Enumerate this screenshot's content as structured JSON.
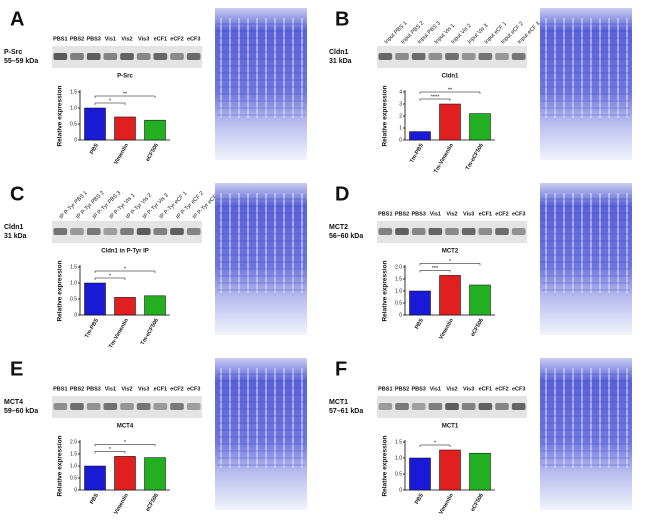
{
  "panels": [
    {
      "letter": "A",
      "protein": "P-Src",
      "kda": "55–59 kDa",
      "lanes": [
        "PBS1",
        "PBS2",
        "PBS3",
        "Vis1",
        "Vis2",
        "Vis3",
        "eCF1",
        "eCF2",
        "eCF3"
      ]
    },
    {
      "letter": "B",
      "protein": "Cldn1",
      "kda": "31 kDa",
      "lanes": [
        "Input PBS 1",
        "Input PBS 2",
        "Input PBS 3",
        "Input Vis 1",
        "Input Vis 2",
        "Input Vis 3",
        "Input eCF 1",
        "Input eCF 2",
        "Input eCF 3"
      ]
    },
    {
      "letter": "C",
      "protein": "Cldn1",
      "kda": "31 kDa",
      "lanes": [
        "IP P-Tyr PBS 1",
        "IP P-Tyr PBS 2",
        "IP P-Tyr PBS 3",
        "IP P-Tyr Vis 1",
        "IP P-Tyr Vis 2",
        "IP P-Tyr Vis 3",
        "IP P-Tyr eCF 1",
        "IP P-Tyr eCF 2",
        "IP P-Tyr eCF 3"
      ]
    },
    {
      "letter": "D",
      "protein": "MCT2",
      "kda": "56–60 kDa",
      "lanes": [
        "PBS1",
        "PBS2",
        "PBS3",
        "Vis1",
        "Vis2",
        "Vis3",
        "eCF1",
        "eCF2",
        "eCF3"
      ]
    },
    {
      "letter": "E",
      "protein": "MCT4",
      "kda": "59–60 kDa",
      "lanes": [
        "PBS1",
        "PBS2",
        "PBS3",
        "Vis1",
        "Vis2",
        "Vis3",
        "eCF1",
        "eCF2",
        "eCF3"
      ]
    },
    {
      "letter": "F",
      "protein": "MCT1",
      "kda": "57–61 kDa",
      "lanes": [
        "PBS1",
        "PBS2",
        "PBS3",
        "Vis1",
        "Vis2",
        "Vis3",
        "eCF1",
        "eCF2",
        "eCF3"
      ]
    }
  ],
  "chart_data": [
    {
      "type": "bar",
      "title": "P-Src",
      "ylabel": "Relative expression",
      "categories": [
        "PBS",
        "Vimentin",
        "eCF506"
      ],
      "values": [
        1.0,
        0.72,
        0.62
      ],
      "color": [
        "#1a1ad6",
        "#e02020",
        "#22b022"
      ],
      "ylim": [
        0,
        1.5
      ],
      "yticks": [
        0,
        0.5,
        {
          "value": 1,
          "label": "1.0"
        },
        1.5
      ],
      "annotations": [
        "*",
        "**"
      ]
    },
    {
      "type": "bar",
      "title": "Cldn1",
      "ylabel": "Relative expression",
      "categories": [
        "Tm-PBS",
        "Tm-Vimentin",
        "Tm-eCF506"
      ],
      "values": [
        0.7,
        3.0,
        2.2
      ],
      "color": [
        "#1a1ad6",
        "#e02020",
        "#22b022"
      ],
      "ylim": [
        0,
        4
      ],
      "yticks": [
        0,
        1,
        2,
        3,
        4
      ],
      "annotations": [
        "****",
        "**"
      ]
    },
    {
      "type": "bar",
      "title": "Cldn1 in P-Tyr IP",
      "ylabel": "Relative expression",
      "categories": [
        "Tm-PBS",
        "Tm-Vimentin",
        "Tm-eCF506"
      ],
      "values": [
        1.0,
        0.55,
        0.6
      ],
      "color": [
        "#1a1ad6",
        "#e02020",
        "#22b022"
      ],
      "ylim": [
        0,
        1.5
      ],
      "yticks": [
        0,
        0.5,
        {
          "value": 1,
          "label": "1.0"
        },
        1.5
      ],
      "annotations": [
        "*",
        "*"
      ]
    },
    {
      "type": "bar",
      "title": "MCT2",
      "ylabel": "Relative expression",
      "categories": [
        "PBS",
        "Vimentin",
        "eCF506"
      ],
      "values": [
        1.0,
        1.65,
        1.25
      ],
      "color": [
        "#1a1ad6",
        "#e02020",
        "#22b022"
      ],
      "ylim": [
        0,
        2
      ],
      "yticks": [
        0,
        0.5,
        {
          "value": 1,
          "label": "1.0"
        },
        1.5,
        {
          "value": 2,
          "label": "2.0"
        }
      ],
      "annotations": [
        "***",
        "*"
      ]
    },
    {
      "type": "bar",
      "title": "MCT4",
      "ylabel": "Relative expression",
      "categories": [
        "PBS",
        "Vimentin",
        "eCF506"
      ],
      "values": [
        1.0,
        1.4,
        1.35
      ],
      "color": [
        "#1a1ad6",
        "#e02020",
        "#22b022"
      ],
      "ylim": [
        0,
        2
      ],
      "yticks": [
        0,
        0.5,
        {
          "value": 1,
          "label": "1.0"
        },
        1.5,
        {
          "value": 2,
          "label": "2.0"
        }
      ],
      "annotations": [
        "*",
        "*"
      ]
    },
    {
      "type": "bar",
      "title": "MCT1",
      "ylabel": "Relative expression",
      "categories": [
        "PBS",
        "Vimentin",
        "eCF506"
      ],
      "values": [
        1.0,
        1.25,
        1.15
      ],
      "color": [
        "#1a1ad6",
        "#e02020",
        "#22b022"
      ],
      "ylim": [
        0,
        1.5
      ],
      "yticks": [
        0,
        0.5,
        {
          "value": 1,
          "label": "1.0"
        },
        1.5
      ],
      "annotations": [
        "*"
      ]
    }
  ]
}
